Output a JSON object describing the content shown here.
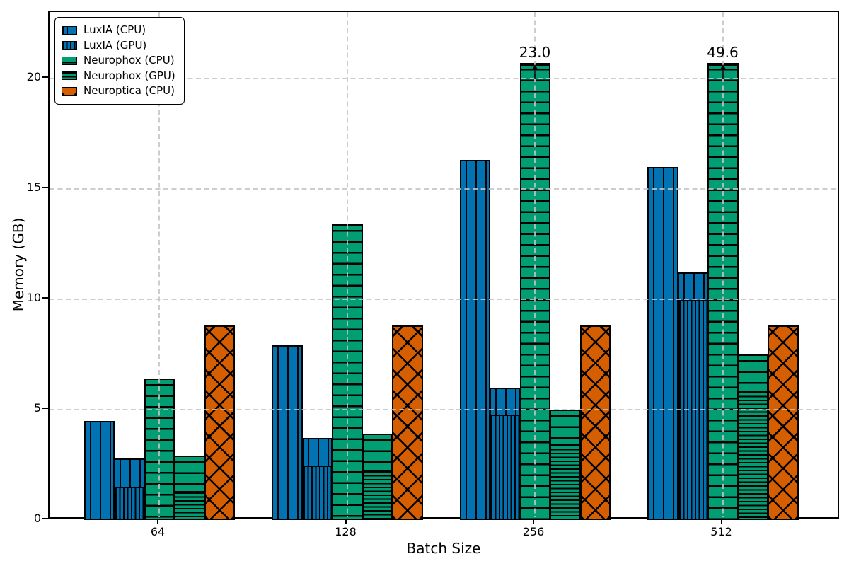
{
  "figure": {
    "xlabel": "Batch Size",
    "ylabel": "Memory (GB)"
  },
  "axes": {
    "y_ticks": [
      0,
      5,
      10,
      15,
      20
    ],
    "x_tick_labels": [
      "64",
      "128",
      "256",
      "512"
    ],
    "grid_color": "#c4c4c4",
    "spine_color": "#000000"
  },
  "legend": {
    "items": [
      {
        "label": "LuxIA (CPU)",
        "swatch": "blue-vertical-sparse"
      },
      {
        "label": "LuxIA (GPU)",
        "swatch": "blue-vertical-dense"
      },
      {
        "label": "Neurophox (CPU)",
        "swatch": "green-horizontal-sparse"
      },
      {
        "label": "Neurophox (GPU)",
        "swatch": "green-horizontal-dense"
      },
      {
        "label": "Neuroptica (CPU)",
        "swatch": "orange-cross"
      }
    ]
  },
  "chart_data": {
    "type": "bar",
    "title": "",
    "xlabel": "Batch Size",
    "ylabel": "Memory (GB)",
    "categories": [
      64,
      128,
      256,
      512
    ],
    "ylim": [
      0,
      23
    ],
    "y_ticks": [
      0,
      5,
      10,
      15,
      20
    ],
    "grid": "dashed gridlines on both axes, drawn over bars",
    "legend_position": "upper-left",
    "bar_display_cap_gb": 20.7,
    "colors": {
      "blue": "#0173b2",
      "green": "#029e73",
      "orange": "#d55e00",
      "edge": "#000000"
    },
    "series": [
      {
        "name": "LuxIA (CPU)",
        "color": "#0173b2",
        "hatch": "vertical-sparse",
        "values": [
          4.5,
          7.9,
          16.3,
          16.0
        ]
      },
      {
        "name": "LuxIA (GPU)",
        "color": "#0173b2",
        "hatch": "vertical-dense",
        "values": [
          2.8,
          3.7,
          6.0,
          11.2
        ],
        "dense_lower_segment": [
          1.5,
          2.5,
          4.8,
          10.0
        ],
        "note": "bar drawn as stack: dense-hatched lower segment + sparse-hatched upper remainder"
      },
      {
        "name": "Neurophox (CPU)",
        "color": "#029e73",
        "hatch": "horizontal-sparse",
        "values": [
          6.4,
          13.4,
          23.0,
          49.6
        ],
        "clipped": [
          false,
          false,
          true,
          true
        ]
      },
      {
        "name": "Neurophox (GPU)",
        "color": "#029e73",
        "hatch": "horizontal-dense",
        "values": [
          2.9,
          3.9,
          5.0,
          7.5
        ],
        "dense_lower_segment": [
          1.3,
          2.3,
          3.5,
          5.9
        ],
        "note": "bar drawn as stack: dense-hatched lower segment + sparse-hatched upper remainder"
      },
      {
        "name": "Neuroptica (CPU)",
        "color": "#d55e00",
        "hatch": "cross",
        "values": [
          8.8,
          8.8,
          8.8,
          8.8
        ]
      }
    ],
    "annotations": [
      {
        "text": "23.0",
        "category": 256,
        "series": "Neurophox (CPU)",
        "marker": "up-arrow-on-clipped-bar"
      },
      {
        "text": "49.6",
        "category": 512,
        "series": "Neurophox (CPU)",
        "marker": "up-arrow-on-clipped-bar"
      }
    ]
  }
}
